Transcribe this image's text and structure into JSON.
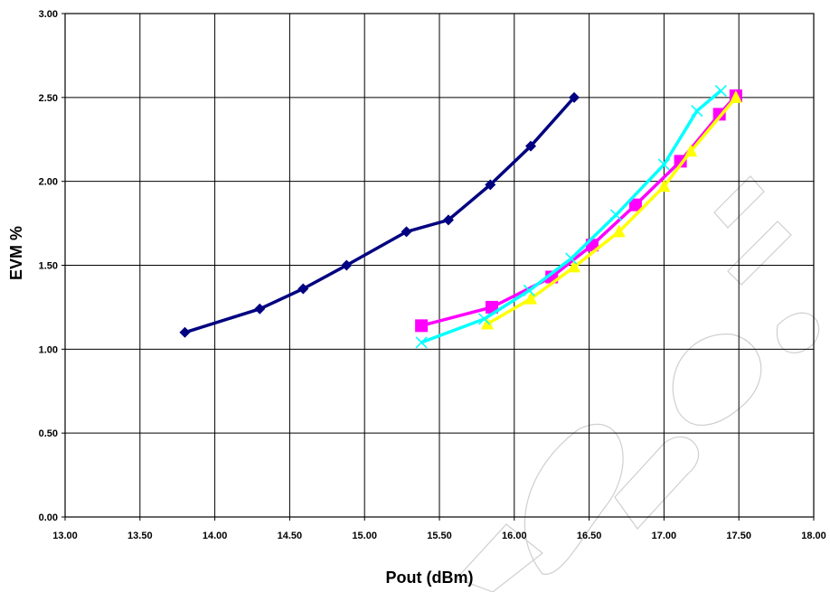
{
  "chart_data": {
    "type": "line",
    "title": "",
    "xlabel": "Pout (dBm)",
    "ylabel": "EVM %",
    "xlim": [
      13.0,
      18.0
    ],
    "ylim": [
      0.0,
      3.0
    ],
    "x_ticks": [
      "13.00",
      "13.50",
      "14.00",
      "14.50",
      "15.00",
      "15.50",
      "16.00",
      "16.50",
      "17.00",
      "17.50",
      "18.00"
    ],
    "y_ticks": [
      "0.00",
      "0.50",
      "1.00",
      "1.50",
      "2.00",
      "2.50",
      "3.00"
    ],
    "grid": true,
    "series": [
      {
        "color": "#000080",
        "marker": "diamond",
        "x": [
          13.8,
          14.3,
          14.59,
          14.88,
          15.28,
          15.56,
          15.84,
          16.11,
          16.4
        ],
        "y": [
          1.1,
          1.24,
          1.36,
          1.5,
          1.7,
          1.77,
          1.98,
          2.21,
          2.5
        ]
      },
      {
        "color": "#FF00FF",
        "marker": "square",
        "x": [
          15.38,
          15.85,
          16.25,
          16.52,
          16.81,
          17.11,
          17.37,
          17.48
        ],
        "y": [
          1.14,
          1.25,
          1.43,
          1.62,
          1.86,
          2.12,
          2.4,
          2.51
        ]
      },
      {
        "color": "#FFFF00",
        "marker": "triangle",
        "x": [
          15.82,
          16.11,
          16.4,
          16.7,
          17.0,
          17.18,
          17.48
        ],
        "y": [
          1.15,
          1.3,
          1.49,
          1.7,
          1.97,
          2.18,
          2.5
        ]
      },
      {
        "color": "#00FFFF",
        "marker": "x",
        "x": [
          15.38,
          15.8,
          16.1,
          16.38,
          16.68,
          17.0,
          17.22,
          17.38
        ],
        "y": [
          1.04,
          1.18,
          1.35,
          1.54,
          1.8,
          2.1,
          2.42,
          2.54
        ]
      }
    ]
  }
}
